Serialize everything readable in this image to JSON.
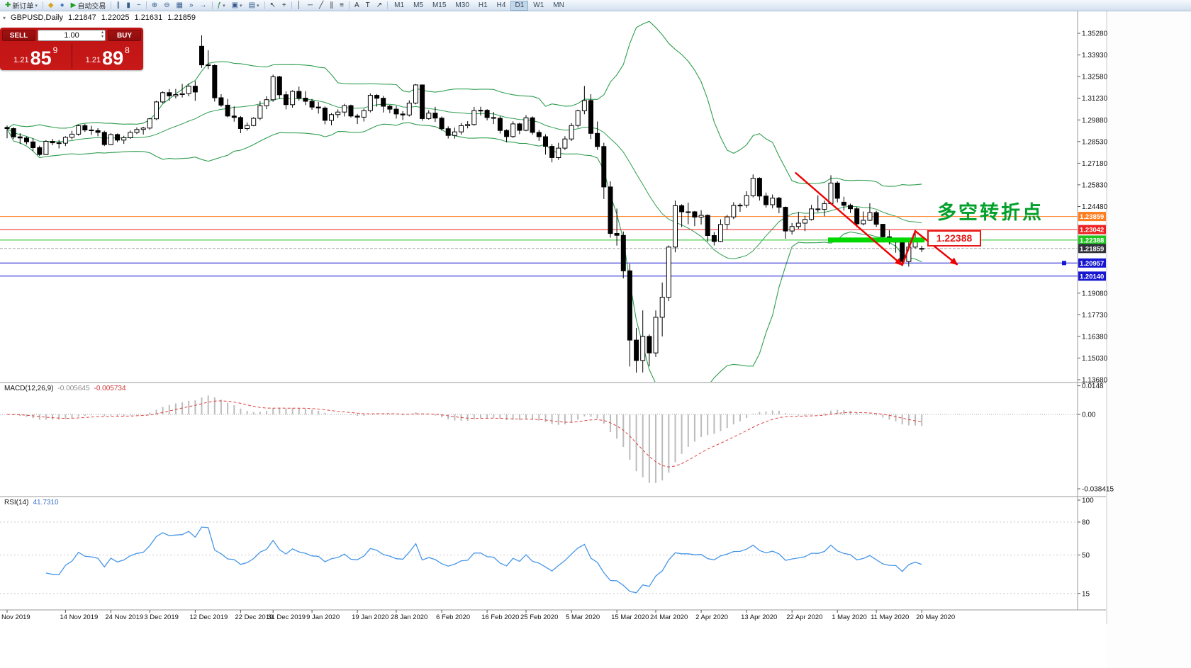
{
  "toolbar": {
    "new_order": "新订单",
    "auto_trading": "自动交易",
    "timeframes": [
      "M1",
      "M5",
      "M15",
      "M30",
      "H1",
      "H4",
      "D1",
      "W1",
      "MN"
    ],
    "active_timeframe": "D1",
    "items": [
      {
        "name": "new-order-button",
        "glyph": "✚",
        "color": "#1f9d1f",
        "label": "新订单",
        "dropdown": true
      },
      {
        "sep": true
      },
      {
        "name": "symbols-icon",
        "glyph": "◆",
        "color": "#d9a326"
      },
      {
        "name": "profile-icon",
        "glyph": "●",
        "color": "#4a78c8"
      },
      {
        "name": "autotrade-button",
        "glyph": "▶",
        "color": "#1f9d1f",
        "label": "自动交易"
      },
      {
        "sep": true
      },
      {
        "name": "bar-chart-icon",
        "glyph": "∥",
        "color": "#355b8c"
      },
      {
        "name": "candlestick-icon",
        "glyph": "▮",
        "color": "#355b8c"
      },
      {
        "name": "line-chart-icon",
        "glyph": "~",
        "color": "#355b8c"
      },
      {
        "sep": true
      },
      {
        "name": "zoom-in-icon",
        "glyph": "⊕",
        "color": "#355b8c"
      },
      {
        "name": "zoom-out-icon",
        "glyph": "⊖",
        "color": "#355b8c"
      },
      {
        "name": "tile-windows-icon",
        "glyph": "▦",
        "color": "#355b8c"
      },
      {
        "name": "auto-scroll-icon",
        "glyph": "»",
        "color": "#355b8c"
      },
      {
        "name": "chart-shift-icon",
        "glyph": "→",
        "color": "#355b8c"
      },
      {
        "sep": true
      },
      {
        "name": "indicators-icon",
        "glyph": "ƒ",
        "color": "#2c7a2c",
        "dropdown": true
      },
      {
        "name": "periods-icon",
        "glyph": "▣",
        "color": "#355b8c",
        "dropdown": true
      },
      {
        "name": "templates-icon",
        "glyph": "▤",
        "color": "#355b8c",
        "dropdown": true
      },
      {
        "sep": true
      },
      {
        "name": "cursor-icon",
        "glyph": "↖",
        "color": "#333333"
      },
      {
        "name": "crosshair-icon",
        "glyph": "+",
        "color": "#333333"
      },
      {
        "sep": true
      },
      {
        "name": "vertical-line-icon",
        "glyph": "│",
        "color": "#333333"
      },
      {
        "name": "horizontal-line-icon",
        "glyph": "─",
        "color": "#333333"
      },
      {
        "name": "trendline-icon",
        "glyph": "╱",
        "color": "#333333"
      },
      {
        "name": "channel-icon",
        "glyph": "∥",
        "color": "#333333"
      },
      {
        "name": "fibonacci-icon",
        "glyph": "≡",
        "color": "#333333"
      },
      {
        "sep": true
      },
      {
        "name": "text-icon",
        "glyph": "A",
        "color": "#333333"
      },
      {
        "name": "label-icon",
        "glyph": "T",
        "color": "#333333"
      },
      {
        "name": "arrow-tool-icon",
        "glyph": "↗",
        "color": "#333333"
      },
      {
        "sep": true
      }
    ],
    "right_icons": [
      {
        "name": "toolbar-prev-icon",
        "glyph": "◂"
      },
      {
        "name": "toolbar-next-icon",
        "glyph": "▸"
      }
    ]
  },
  "chart_header": {
    "symbol": "GBPUSD,Daily",
    "open": "1.21847",
    "high": "1.22025",
    "low": "1.21631",
    "close": "1.21859"
  },
  "trade_panel": {
    "sell_label": "SELL",
    "buy_label": "BUY",
    "volume": "1.00",
    "sell_price": {
      "prefix": "1.21",
      "big": "85",
      "sup": "9"
    },
    "buy_price": {
      "prefix": "1.21",
      "big": "89",
      "sup": "8"
    }
  },
  "annotations": {
    "turning_point": "多空转折点",
    "level_tag": "1.22388"
  },
  "indicators": {
    "macd": {
      "label": "MACD(12,26,9)",
      "value1": "-0.005645",
      "value2": "-0.005734",
      "axis": [
        "0.0148",
        "0.00",
        "-0.038415"
      ]
    },
    "rsi": {
      "label": "RSI(14)",
      "value": "41.7310",
      "axis": [
        "100",
        "80",
        "50",
        "15"
      ]
    }
  },
  "price_axis": {
    "plain": [
      "1.35280",
      "1.33930",
      "1.32580",
      "1.31230",
      "1.29880",
      "1.28530",
      "1.27180",
      "1.25830",
      "1.24480",
      "1.19080",
      "1.17730",
      "1.16380",
      "1.15030",
      "1.13680"
    ],
    "marked": [
      {
        "text": "1.23859",
        "color": "#ff7d1e"
      },
      {
        "text": "1.23042",
        "color": "#ee2222"
      },
      {
        "text": "1.22388",
        "color": "#21c421"
      },
      {
        "text": "1.21859",
        "color": "#32323c"
      },
      {
        "text": "1.20957",
        "color": "#1616d2"
      },
      {
        "text": "1.20140",
        "color": "#1616d2"
      }
    ]
  },
  "date_axis": {
    "labels": [
      "Nov 2019",
      "14 Nov 2019",
      "24 Nov 2019",
      "3 Dec 2019",
      "12 Dec 2019",
      "22 Dec 2019",
      "31 Dec 2019",
      "9 Jan 2020",
      "19 Jan 2020",
      "28 Jan 2020",
      "6 Feb 2020",
      "16 Feb 2020",
      "25 Feb 2020",
      "5 Mar 2020",
      "15 Mar 2020",
      "24 Mar 2020",
      "2 Apr 2020",
      "13 Apr 2020",
      "22 Apr 2020",
      "1 May 2020",
      "11 May 2020",
      "20 May 2020"
    ],
    "bars": [
      0,
      9,
      16,
      22,
      29,
      36,
      41,
      47,
      54,
      60,
      67,
      74,
      80,
      87,
      94,
      100,
      107,
      114,
      121,
      128,
      134,
      141
    ]
  },
  "chart_data": {
    "type": "candlestick",
    "symbol": "GBPUSD",
    "period": "Daily",
    "ylim": [
      1.1368,
      1.3528
    ],
    "bollinger": {
      "period": 20,
      "deviation": 2,
      "color": "#2f9e4f"
    },
    "macd_params": {
      "fast": 12,
      "slow": 26,
      "signal": 9
    },
    "rsi_params": {
      "period": 14
    },
    "levels": [
      {
        "price": 1.23859,
        "color": "#ff7d1e"
      },
      {
        "price": 1.23042,
        "color": "#ee2222"
      },
      {
        "price": 1.22388,
        "color": "#21c421"
      },
      {
        "price": 1.21859,
        "color": "#aaaaaa",
        "dash": true
      },
      {
        "price": 1.20957,
        "color": "#1616d2",
        "handle": true
      },
      {
        "price": 1.2014,
        "color": "#1616d2"
      }
    ],
    "highlight_segment": {
      "price": 1.2239,
      "from_bar": 127,
      "to_bar": 141,
      "color": "#00d800"
    },
    "arrow": {
      "color": "#ee0000",
      "points": [
        [
          121.5,
          1.266
        ],
        [
          138,
          1.2082
        ],
        [
          140,
          1.2295
        ],
        [
          146.5,
          1.2085
        ]
      ]
    },
    "candles": [
      [
        1.2941,
        1.2953,
        1.2873,
        1.2934
      ],
      [
        1.2934,
        1.2942,
        1.2869,
        1.2882
      ],
      [
        1.2882,
        1.2905,
        1.2838,
        1.2875
      ],
      [
        1.2875,
        1.2884,
        1.2835,
        1.2851
      ],
      [
        1.2851,
        1.2873,
        1.2794,
        1.2815
      ],
      [
        1.2815,
        1.2827,
        1.2762,
        1.2772
      ],
      [
        1.2772,
        1.2862,
        1.2769,
        1.2854
      ],
      [
        1.2854,
        1.287,
        1.283,
        1.2845
      ],
      [
        1.2845,
        1.2863,
        1.281,
        1.2843
      ],
      [
        1.2843,
        1.2886,
        1.2825,
        1.2879
      ],
      [
        1.2879,
        1.292,
        1.2866,
        1.2899
      ],
      [
        1.2899,
        1.2958,
        1.289,
        1.2952
      ],
      [
        1.2952,
        1.2963,
        1.2913,
        1.2925
      ],
      [
        1.2925,
        1.2951,
        1.2894,
        1.2921
      ],
      [
        1.2921,
        1.2936,
        1.2886,
        1.291
      ],
      [
        1.291,
        1.292,
        1.2825,
        1.2834
      ],
      [
        1.2834,
        1.2906,
        1.283,
        1.2897
      ],
      [
        1.2897,
        1.2903,
        1.2849,
        1.2862
      ],
      [
        1.2862,
        1.2889,
        1.2838,
        1.2877
      ],
      [
        1.2877,
        1.2922,
        1.287,
        1.291
      ],
      [
        1.291,
        1.2941,
        1.2899,
        1.2928
      ],
      [
        1.2928,
        1.2945,
        1.2897,
        1.2937
      ],
      [
        1.2937,
        1.3,
        1.2927,
        1.2995
      ],
      [
        1.2995,
        1.3108,
        1.2987,
        1.31
      ],
      [
        1.31,
        1.3166,
        1.3091,
        1.3158
      ],
      [
        1.3158,
        1.318,
        1.3108,
        1.3138
      ],
      [
        1.3138,
        1.3181,
        1.3122,
        1.3146
      ],
      [
        1.3146,
        1.3212,
        1.3128,
        1.3152
      ],
      [
        1.3152,
        1.3215,
        1.3135,
        1.3198
      ],
      [
        1.3198,
        1.323,
        1.3107,
        1.3162
      ],
      [
        1.3447,
        1.3515,
        1.3313,
        1.3331
      ],
      [
        1.3331,
        1.3422,
        1.3305,
        1.3327
      ],
      [
        1.3327,
        1.3335,
        1.3102,
        1.3126
      ],
      [
        1.3126,
        1.3148,
        1.307,
        1.308
      ],
      [
        1.308,
        1.3119,
        1.3004,
        1.3012
      ],
      [
        1.3012,
        1.3072,
        1.2977,
        1.3003
      ],
      [
        1.3003,
        1.3012,
        1.2905,
        1.2934
      ],
      [
        1.2934,
        1.2972,
        1.2921,
        1.2953
      ],
      [
        1.2953,
        1.3005,
        1.2948,
        1.2998
      ],
      [
        1.2998,
        1.3105,
        1.2987,
        1.3076
      ],
      [
        1.3076,
        1.3135,
        1.3055,
        1.3114
      ],
      [
        1.3114,
        1.327,
        1.3101,
        1.3257
      ],
      [
        1.3257,
        1.3263,
        1.3121,
        1.3145
      ],
      [
        1.3145,
        1.3166,
        1.3054,
        1.3083
      ],
      [
        1.3083,
        1.3173,
        1.3064,
        1.3166
      ],
      [
        1.3166,
        1.3196,
        1.3108,
        1.3124
      ],
      [
        1.3124,
        1.3167,
        1.308,
        1.3104
      ],
      [
        1.3104,
        1.3119,
        1.3051,
        1.3068
      ],
      [
        1.3068,
        1.31,
        1.3027,
        1.3062
      ],
      [
        1.3062,
        1.3072,
        1.296,
        1.2985
      ],
      [
        1.2985,
        1.303,
        1.2954,
        1.3021
      ],
      [
        1.3021,
        1.3053,
        1.3,
        1.3037
      ],
      [
        1.3037,
        1.3088,
        1.3009,
        1.3077
      ],
      [
        1.3077,
        1.3083,
        1.3003,
        1.3012
      ],
      [
        1.3012,
        1.3025,
        1.2962,
        1.3005
      ],
      [
        1.3005,
        1.3058,
        1.2978,
        1.3046
      ],
      [
        1.3046,
        1.3153,
        1.3035,
        1.3141
      ],
      [
        1.3141,
        1.3149,
        1.3071,
        1.3123
      ],
      [
        1.3123,
        1.3138,
        1.3034,
        1.3073
      ],
      [
        1.3073,
        1.3082,
        1.303,
        1.3055
      ],
      [
        1.3055,
        1.3075,
        1.2996,
        1.3025
      ],
      [
        1.3025,
        1.3043,
        1.2987,
        1.3019
      ],
      [
        1.3019,
        1.311,
        1.3009,
        1.3093
      ],
      [
        1.3093,
        1.3212,
        1.3085,
        1.3206
      ],
      [
        1.3206,
        1.3208,
        1.2983,
        1.2996
      ],
      [
        1.2996,
        1.3049,
        1.2989,
        1.303
      ],
      [
        1.303,
        1.307,
        1.2975,
        1.2999
      ],
      [
        1.2999,
        1.3009,
        1.2921,
        1.2933
      ],
      [
        1.2933,
        1.2948,
        1.2872,
        1.2891
      ],
      [
        1.2891,
        1.294,
        1.2871,
        1.2913
      ],
      [
        1.2913,
        1.2969,
        1.2897,
        1.2952
      ],
      [
        1.2952,
        1.298,
        1.2935,
        1.2959
      ],
      [
        1.2959,
        1.3069,
        1.2952,
        1.3046
      ],
      [
        1.3046,
        1.307,
        1.3015,
        1.3048
      ],
      [
        1.3048,
        1.3055,
        1.2985,
        1.3003
      ],
      [
        1.3003,
        1.3037,
        1.2962,
        1.2998
      ],
      [
        1.2998,
        1.3012,
        1.2903,
        1.2922
      ],
      [
        1.2922,
        1.2929,
        1.2848,
        1.2884
      ],
      [
        1.2884,
        1.2979,
        1.2876,
        1.2963
      ],
      [
        1.2963,
        1.297,
        1.2899,
        1.2923
      ],
      [
        1.2923,
        1.3018,
        1.2917,
        1.3001
      ],
      [
        1.3001,
        1.301,
        1.2896,
        1.291
      ],
      [
        1.291,
        1.2925,
        1.2857,
        1.2883
      ],
      [
        1.2883,
        1.2898,
        1.2772,
        1.2823
      ],
      [
        1.2823,
        1.2838,
        1.2723,
        1.2753
      ],
      [
        1.2753,
        1.2845,
        1.2739,
        1.2812
      ],
      [
        1.2812,
        1.2886,
        1.28,
        1.2869
      ],
      [
        1.2869,
        1.2968,
        1.2856,
        1.2953
      ],
      [
        1.2953,
        1.3052,
        1.2941,
        1.3045
      ],
      [
        1.3045,
        1.32,
        1.3023,
        1.3109
      ],
      [
        1.3109,
        1.3148,
        1.2869,
        1.2904
      ],
      [
        1.2904,
        1.2978,
        1.28,
        1.2822
      ],
      [
        1.2822,
        1.2845,
        1.2495,
        1.257
      ],
      [
        1.257,
        1.2605,
        1.2254,
        1.228
      ],
      [
        1.228,
        1.2435,
        1.2204,
        1.2268
      ],
      [
        1.2268,
        1.2292,
        1.2,
        1.2047
      ],
      [
        1.2047,
        1.209,
        1.145,
        1.1615
      ],
      [
        1.1615,
        1.169,
        1.1412,
        1.1488
      ],
      [
        1.1488,
        1.18,
        1.1413,
        1.1638
      ],
      [
        1.1638,
        1.165,
        1.1452,
        1.1535
      ],
      [
        1.1535,
        1.18,
        1.151,
        1.1757
      ],
      [
        1.1757,
        1.1974,
        1.1638,
        1.1882
      ],
      [
        1.1882,
        1.2205,
        1.1858,
        1.2195
      ],
      [
        1.2195,
        1.2485,
        1.2162,
        1.2453
      ],
      [
        1.2453,
        1.2462,
        1.232,
        1.2415
      ],
      [
        1.2415,
        1.2472,
        1.2337,
        1.2415
      ],
      [
        1.2415,
        1.242,
        1.2325,
        1.2382
      ],
      [
        1.2382,
        1.2425,
        1.2336,
        1.2393
      ],
      [
        1.2393,
        1.2399,
        1.223,
        1.2267
      ],
      [
        1.2267,
        1.2288,
        1.2205,
        1.223
      ],
      [
        1.223,
        1.2368,
        1.2226,
        1.2336
      ],
      [
        1.2336,
        1.2396,
        1.2305,
        1.2383
      ],
      [
        1.2383,
        1.2475,
        1.237,
        1.2454
      ],
      [
        1.2454,
        1.2468,
        1.2415,
        1.2456
      ],
      [
        1.2456,
        1.2543,
        1.244,
        1.2516
      ],
      [
        1.2516,
        1.2648,
        1.2505,
        1.2624
      ],
      [
        1.2624,
        1.263,
        1.2485,
        1.2513
      ],
      [
        1.2513,
        1.2535,
        1.2441,
        1.2459
      ],
      [
        1.2459,
        1.2523,
        1.2436,
        1.25
      ],
      [
        1.25,
        1.2508,
        1.2406,
        1.2443
      ],
      [
        1.2443,
        1.2448,
        1.2247,
        1.2295
      ],
      [
        1.2295,
        1.2345,
        1.2273,
        1.2323
      ],
      [
        1.2323,
        1.2414,
        1.2309,
        1.2344
      ],
      [
        1.2344,
        1.239,
        1.2294,
        1.2367
      ],
      [
        1.2367,
        1.2458,
        1.236,
        1.2433
      ],
      [
        1.2433,
        1.2518,
        1.2412,
        1.243
      ],
      [
        1.243,
        1.2485,
        1.2387,
        1.2466
      ],
      [
        1.2466,
        1.2643,
        1.246,
        1.2594
      ],
      [
        1.2594,
        1.2605,
        1.2474,
        1.2499
      ],
      [
        1.2475,
        1.2509,
        1.2423,
        1.2455
      ],
      [
        1.2455,
        1.2466,
        1.2407,
        1.2434
      ],
      [
        1.2434,
        1.2445,
        1.2318,
        1.234
      ],
      [
        1.234,
        1.2417,
        1.233,
        1.2362
      ],
      [
        1.2362,
        1.2468,
        1.2358,
        1.241
      ],
      [
        1.241,
        1.2421,
        1.232,
        1.2337
      ],
      [
        1.2337,
        1.2338,
        1.2223,
        1.2259
      ],
      [
        1.2259,
        1.2301,
        1.2211,
        1.223
      ],
      [
        1.223,
        1.2247,
        1.216,
        1.2227
      ],
      [
        1.2227,
        1.224,
        1.2075,
        1.2105
      ],
      [
        1.2105,
        1.2228,
        1.2073,
        1.2195
      ],
      [
        1.2195,
        1.2296,
        1.2185,
        1.223
      ],
      [
        1.21847,
        1.22025,
        1.21631,
        1.21859
      ]
    ]
  },
  "colors": {
    "bull": "#ffffff",
    "bear": "#000000",
    "outline": "#000000",
    "macd_hist": "#bcbcbc",
    "macd_signal": "#e04040",
    "rsi_line": "#4696e8",
    "panel_border": "#9a9a9a"
  }
}
